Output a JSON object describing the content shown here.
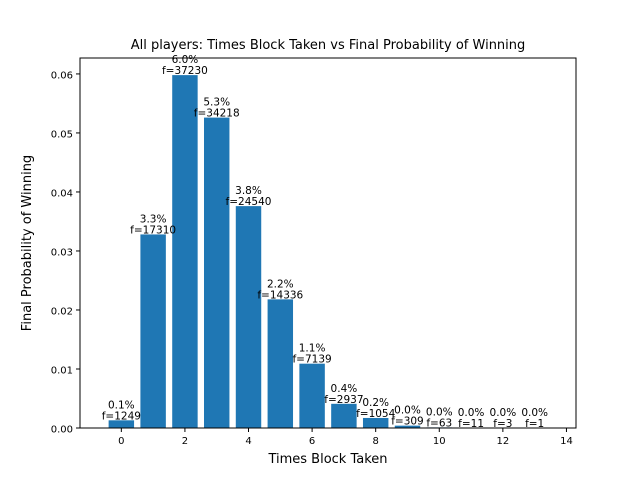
{
  "chart_data": {
    "type": "bar",
    "title": "All players: Times Block Taken vs Final Probability of Winning",
    "xlabel": "Times Block Taken",
    "ylabel": "Final Probability of Winning",
    "xlim": [
      -1.3,
      14.3
    ],
    "ylim": [
      0,
      0.0627
    ],
    "xticks": [
      0,
      2,
      4,
      6,
      8,
      10,
      12,
      14
    ],
    "yticks": [
      0.0,
      0.01,
      0.02,
      0.03,
      0.04,
      0.05,
      0.06
    ],
    "ytick_labels": [
      "0.00",
      "0.01",
      "0.02",
      "0.03",
      "0.04",
      "0.05",
      "0.06"
    ],
    "grid": false,
    "color": "#1f77b4",
    "bars": [
      {
        "x": 0,
        "value": 0.0013,
        "pct": "0.1%",
        "freq": "f=1249"
      },
      {
        "x": 1,
        "value": 0.0328,
        "pct": "3.3%",
        "freq": "f=17310"
      },
      {
        "x": 2,
        "value": 0.0598,
        "pct": "6.0%",
        "freq": "f=37230"
      },
      {
        "x": 3,
        "value": 0.0526,
        "pct": "5.3%",
        "freq": "f=34218"
      },
      {
        "x": 4,
        "value": 0.0376,
        "pct": "3.8%",
        "freq": "f=24540"
      },
      {
        "x": 5,
        "value": 0.0218,
        "pct": "2.2%",
        "freq": "f=14336"
      },
      {
        "x": 6,
        "value": 0.0109,
        "pct": "1.1%",
        "freq": "f=7139"
      },
      {
        "x": 7,
        "value": 0.0041,
        "pct": "0.4%",
        "freq": "f=2937"
      },
      {
        "x": 8,
        "value": 0.0017,
        "pct": "0.2%",
        "freq": "f=1054"
      },
      {
        "x": 9,
        "value": 0.0004,
        "pct": "0.0%",
        "freq": "f=309"
      },
      {
        "x": 10,
        "value": 0.0001,
        "pct": "0.0%",
        "freq": "f=63"
      },
      {
        "x": 11,
        "value": 0.0,
        "pct": "0.0%",
        "freq": "f=11"
      },
      {
        "x": 12,
        "value": 0.0,
        "pct": "0.0%",
        "freq": "f=3"
      },
      {
        "x": 13,
        "value": 0.0,
        "pct": "0.0%",
        "freq": "f=1"
      }
    ]
  }
}
